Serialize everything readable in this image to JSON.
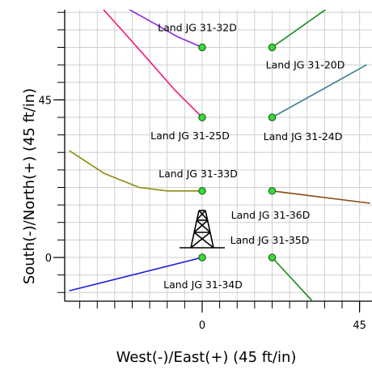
{
  "chart_data": {
    "type": "plan-view-well-map",
    "xlabel": "West(-)/East(+) (45 ft/in)",
    "ylabel": "South(-)/North(+) (45 ft/in)",
    "xlim": [
      -38,
      45
    ],
    "ylim": [
      -12.5,
      71
    ],
    "grid": true,
    "x_ticks": [
      0,
      45
    ],
    "y_ticks": [
      0,
      45
    ],
    "rig": {
      "x": 0,
      "y": 0
    },
    "wells": [
      {
        "name": "Land JG 31-32D",
        "x": 0,
        "y": 60,
        "color": "#8a2be2",
        "trajectory": [
          [
            0,
            60
          ],
          [
            -7,
            63
          ],
          [
            -14,
            67
          ],
          [
            -23,
            72
          ]
        ]
      },
      {
        "name": "Land JG 31-25D",
        "x": 0,
        "y": 40,
        "color": "#ee1a7b",
        "trajectory": [
          [
            0,
            40
          ],
          [
            -8,
            48
          ],
          [
            -15,
            56
          ],
          [
            -23,
            65
          ],
          [
            -32,
            75
          ]
        ]
      },
      {
        "name": "Land JG 31-33D",
        "x": 0,
        "y": 19,
        "color": "#8c8c10",
        "trajectory": [
          [
            0,
            19
          ],
          [
            -10,
            19
          ],
          [
            -18,
            20
          ],
          [
            -28,
            24
          ],
          [
            -38,
            30.5
          ]
        ]
      },
      {
        "name": "Land JG 31-34D",
        "x": 0,
        "y": 0,
        "color": "#1a1add",
        "trajectory": [
          [
            0,
            0
          ],
          [
            -38,
            -9.5
          ]
        ]
      },
      {
        "name": "Land JG 31-20D",
        "x": 20,
        "y": 60,
        "color": "#1a8a1a",
        "trajectory": [
          [
            20,
            60
          ],
          [
            37,
            72
          ]
        ]
      },
      {
        "name": "Land JG 31-24D",
        "x": 20,
        "y": 40,
        "color": "#3b7f8f",
        "trajectory": [
          [
            20,
            40
          ],
          [
            47,
            55
          ]
        ]
      },
      {
        "name": "Land JG 31-36D",
        "x": 20,
        "y": 19,
        "color": "#8a4a14",
        "trajectory": [
          [
            20,
            19
          ],
          [
            48,
            15.5
          ]
        ]
      },
      {
        "name": "Land JG 31-35D",
        "x": 20,
        "y": 0,
        "color": "#1a8a1a",
        "trajectory": [
          [
            20,
            0
          ],
          [
            32,
            -13
          ]
        ]
      }
    ]
  }
}
